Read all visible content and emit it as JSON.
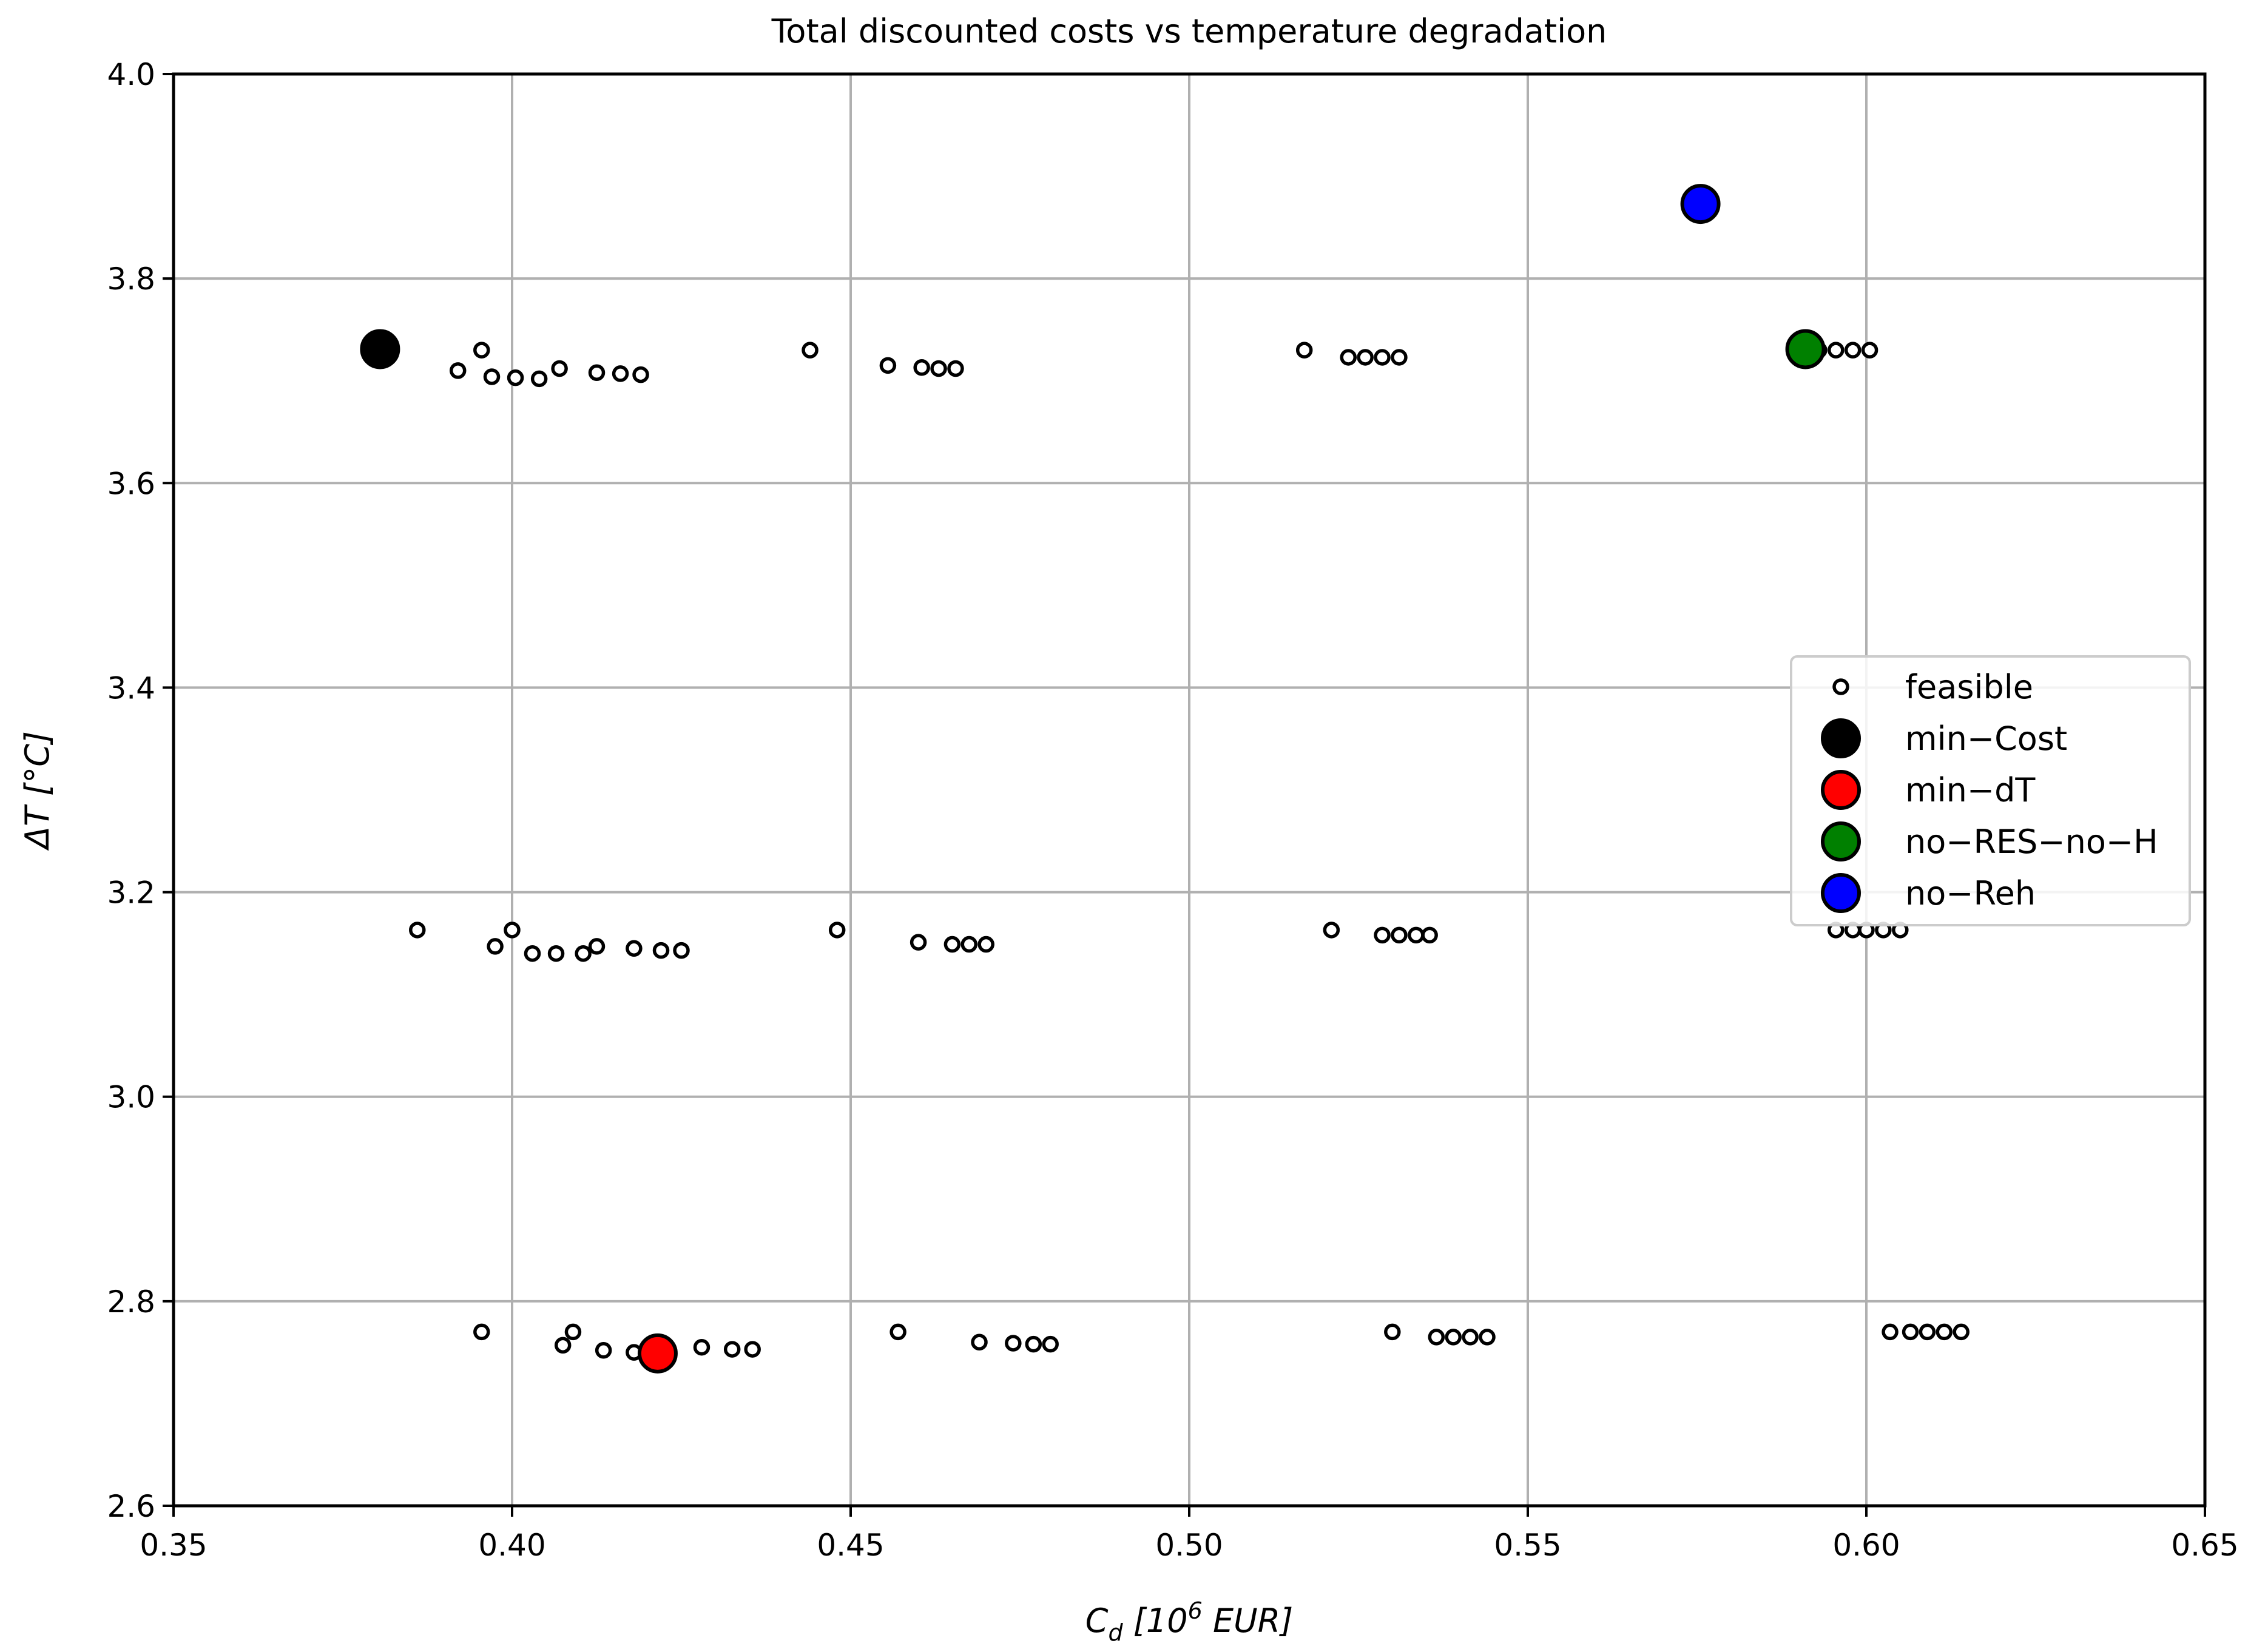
{
  "chart_data": {
    "type": "scatter",
    "title": "Total discounted costs vs temperature degradation",
    "xlabel": "C_d [10^6 EUR]",
    "ylabel": "ΔT [°C]",
    "xlim": [
      0.35,
      0.65
    ],
    "ylim": [
      2.6,
      4.0
    ],
    "xticks": [
      "0.35",
      "0.40",
      "0.45",
      "0.50",
      "0.55",
      "0.60",
      "0.65"
    ],
    "yticks": [
      "2.6",
      "2.8",
      "3.0",
      "3.2",
      "3.4",
      "3.6",
      "3.8",
      "4.0"
    ],
    "grid": true,
    "legend_position": "center-right",
    "series": [
      {
        "name": "feasible",
        "marker": "open-circle",
        "color": "#000000",
        "points": [
          [
            0.392,
            3.71
          ],
          [
            0.3955,
            3.73
          ],
          [
            0.397,
            3.704
          ],
          [
            0.4005,
            3.703
          ],
          [
            0.404,
            3.702
          ],
          [
            0.407,
            3.712
          ],
          [
            0.4125,
            3.708
          ],
          [
            0.416,
            3.707
          ],
          [
            0.419,
            3.706
          ],
          [
            0.444,
            3.73
          ],
          [
            0.4555,
            3.715
          ],
          [
            0.4605,
            3.713
          ],
          [
            0.463,
            3.712
          ],
          [
            0.4655,
            3.712
          ],
          [
            0.517,
            3.73
          ],
          [
            0.5235,
            3.723
          ],
          [
            0.526,
            3.723
          ],
          [
            0.5285,
            3.723
          ],
          [
            0.531,
            3.723
          ],
          [
            0.593,
            3.73
          ],
          [
            0.5955,
            3.73
          ],
          [
            0.598,
            3.73
          ],
          [
            0.6005,
            3.73
          ],
          [
            0.386,
            3.163
          ],
          [
            0.4,
            3.163
          ],
          [
            0.3975,
            3.147
          ],
          [
            0.403,
            3.14
          ],
          [
            0.4065,
            3.14
          ],
          [
            0.4105,
            3.14
          ],
          [
            0.4125,
            3.147
          ],
          [
            0.418,
            3.145
          ],
          [
            0.422,
            3.143
          ],
          [
            0.425,
            3.143
          ],
          [
            0.448,
            3.163
          ],
          [
            0.46,
            3.151
          ],
          [
            0.465,
            3.149
          ],
          [
            0.4675,
            3.149
          ],
          [
            0.47,
            3.149
          ],
          [
            0.521,
            3.163
          ],
          [
            0.5285,
            3.158
          ],
          [
            0.531,
            3.158
          ],
          [
            0.5335,
            3.158
          ],
          [
            0.5355,
            3.158
          ],
          [
            0.5955,
            3.163
          ],
          [
            0.598,
            3.163
          ],
          [
            0.6,
            3.163
          ],
          [
            0.6025,
            3.163
          ],
          [
            0.605,
            3.163
          ],
          [
            0.3955,
            2.77
          ],
          [
            0.4075,
            2.757
          ],
          [
            0.409,
            2.77
          ],
          [
            0.4135,
            2.752
          ],
          [
            0.418,
            2.75
          ],
          [
            0.428,
            2.755
          ],
          [
            0.4325,
            2.753
          ],
          [
            0.4355,
            2.753
          ],
          [
            0.457,
            2.77
          ],
          [
            0.469,
            2.76
          ],
          [
            0.474,
            2.759
          ],
          [
            0.477,
            2.758
          ],
          [
            0.4795,
            2.758
          ],
          [
            0.53,
            2.77
          ],
          [
            0.5365,
            2.765
          ],
          [
            0.539,
            2.765
          ],
          [
            0.5415,
            2.765
          ],
          [
            0.544,
            2.765
          ],
          [
            0.6035,
            2.77
          ],
          [
            0.6065,
            2.77
          ],
          [
            0.609,
            2.77
          ],
          [
            0.6115,
            2.77
          ],
          [
            0.614,
            2.77
          ]
        ]
      },
      {
        "name": "min−Cost",
        "marker": "filled-circle",
        "color": "#000000",
        "points": [
          [
            0.3805,
            3.731
          ]
        ]
      },
      {
        "name": "min−dT",
        "marker": "filled-circle",
        "color": "#ff0000",
        "points": [
          [
            0.4215,
            2.749
          ]
        ]
      },
      {
        "name": "no−RES−no−H",
        "marker": "filled-circle",
        "color": "#008000",
        "points": [
          [
            0.591,
            3.731
          ]
        ]
      },
      {
        "name": "no−Reh",
        "marker": "filled-circle",
        "color": "#0000ff",
        "points": [
          [
            0.5755,
            3.873
          ]
        ]
      }
    ]
  }
}
